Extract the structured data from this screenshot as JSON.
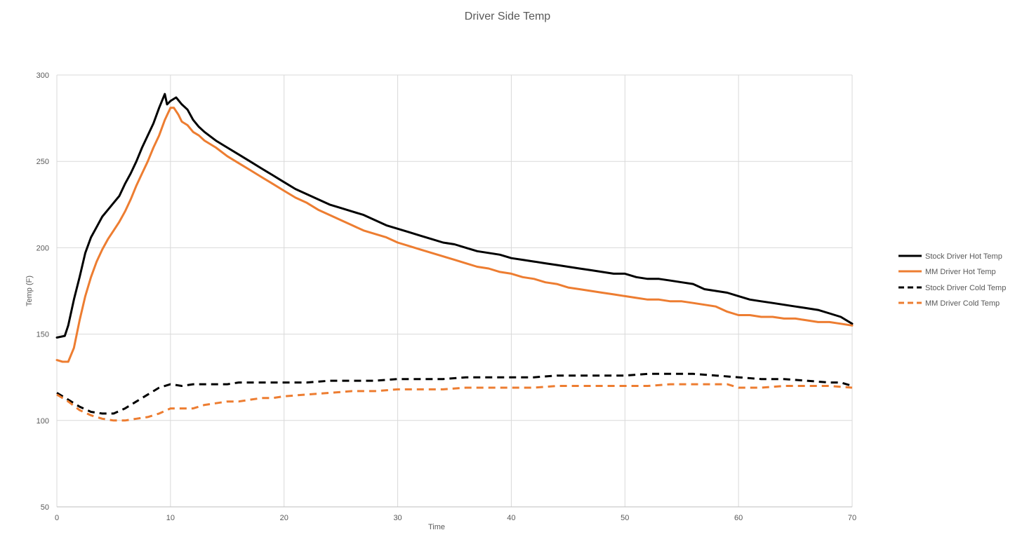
{
  "chart_data": {
    "type": "line",
    "title": "Driver Side Temp",
    "xlabel": "Time",
    "ylabel": "Temp  (F)",
    "xlim": [
      0,
      70
    ],
    "ylim": [
      50,
      300
    ],
    "x_ticks": [
      "0",
      "10",
      "20",
      "30",
      "40",
      "50",
      "60",
      "70"
    ],
    "y_ticks": [
      "50",
      "100",
      "150",
      "200",
      "250",
      "300"
    ],
    "grid": true,
    "legend_position": "right",
    "series": [
      {
        "name": "Stock Driver Hot Temp",
        "color": "#000000",
        "style": "solid",
        "points": [
          [
            0,
            148
          ],
          [
            0.7,
            149
          ],
          [
            1,
            155
          ],
          [
            1.5,
            170
          ],
          [
            2,
            183
          ],
          [
            2.5,
            197
          ],
          [
            3,
            206
          ],
          [
            3.5,
            212
          ],
          [
            4,
            218
          ],
          [
            4.5,
            222
          ],
          [
            5,
            226
          ],
          [
            5.5,
            230
          ],
          [
            6,
            237
          ],
          [
            6.5,
            243
          ],
          [
            7,
            250
          ],
          [
            7.5,
            258
          ],
          [
            8,
            265
          ],
          [
            8.5,
            272
          ],
          [
            9,
            281
          ],
          [
            9.5,
            289
          ],
          [
            9.7,
            283
          ],
          [
            10,
            285
          ],
          [
            10.5,
            287
          ],
          [
            11,
            283
          ],
          [
            11.5,
            280
          ],
          [
            12,
            274
          ],
          [
            12.5,
            270
          ],
          [
            13,
            267
          ],
          [
            14,
            262
          ],
          [
            15,
            258
          ],
          [
            16,
            254
          ],
          [
            17,
            250
          ],
          [
            18,
            246
          ],
          [
            19,
            242
          ],
          [
            20,
            238
          ],
          [
            21,
            234
          ],
          [
            22,
            231
          ],
          [
            23,
            228
          ],
          [
            24,
            225
          ],
          [
            25,
            223
          ],
          [
            26,
            221
          ],
          [
            27,
            219
          ],
          [
            28,
            216
          ],
          [
            29,
            213
          ],
          [
            30,
            211
          ],
          [
            31,
            209
          ],
          [
            32,
            207
          ],
          [
            33,
            205
          ],
          [
            34,
            203
          ],
          [
            35,
            202
          ],
          [
            36,
            200
          ],
          [
            37,
            198
          ],
          [
            38,
            197
          ],
          [
            39,
            196
          ],
          [
            40,
            194
          ],
          [
            41,
            193
          ],
          [
            42,
            192
          ],
          [
            43,
            191
          ],
          [
            44,
            190
          ],
          [
            45,
            189
          ],
          [
            46,
            188
          ],
          [
            47,
            187
          ],
          [
            48,
            186
          ],
          [
            49,
            185
          ],
          [
            50,
            185
          ],
          [
            51,
            183
          ],
          [
            52,
            182
          ],
          [
            53,
            182
          ],
          [
            54,
            181
          ],
          [
            55,
            180
          ],
          [
            56,
            179
          ],
          [
            57,
            176
          ],
          [
            58,
            175
          ],
          [
            59,
            174
          ],
          [
            60,
            172
          ],
          [
            61,
            170
          ],
          [
            62,
            169
          ],
          [
            63,
            168
          ],
          [
            64,
            167
          ],
          [
            65,
            166
          ],
          [
            66,
            165
          ],
          [
            67,
            164
          ],
          [
            68,
            162
          ],
          [
            69,
            160
          ],
          [
            70,
            156
          ]
        ]
      },
      {
        "name": "MM Driver Hot Temp",
        "color": "#ED7D31",
        "style": "solid",
        "points": [
          [
            0,
            135
          ],
          [
            0.5,
            134
          ],
          [
            1,
            134
          ],
          [
            1.5,
            142
          ],
          [
            2,
            158
          ],
          [
            2.5,
            172
          ],
          [
            3,
            183
          ],
          [
            3.5,
            192
          ],
          [
            4,
            199
          ],
          [
            4.5,
            205
          ],
          [
            5,
            210
          ],
          [
            5.5,
            215
          ],
          [
            6,
            221
          ],
          [
            6.5,
            228
          ],
          [
            7,
            236
          ],
          [
            7.5,
            243
          ],
          [
            8,
            250
          ],
          [
            8.5,
            258
          ],
          [
            9,
            265
          ],
          [
            9.5,
            274
          ],
          [
            10,
            281
          ],
          [
            10.3,
            281
          ],
          [
            10.7,
            277
          ],
          [
            11,
            273
          ],
          [
            11.5,
            271
          ],
          [
            12,
            267
          ],
          [
            12.5,
            265
          ],
          [
            13,
            262
          ],
          [
            14,
            258
          ],
          [
            15,
            253
          ],
          [
            16,
            249
          ],
          [
            17,
            245
          ],
          [
            18,
            241
          ],
          [
            19,
            237
          ],
          [
            20,
            233
          ],
          [
            21,
            229
          ],
          [
            22,
            226
          ],
          [
            23,
            222
          ],
          [
            24,
            219
          ],
          [
            25,
            216
          ],
          [
            26,
            213
          ],
          [
            27,
            210
          ],
          [
            28,
            208
          ],
          [
            29,
            206
          ],
          [
            30,
            203
          ],
          [
            31,
            201
          ],
          [
            32,
            199
          ],
          [
            33,
            197
          ],
          [
            34,
            195
          ],
          [
            35,
            193
          ],
          [
            36,
            191
          ],
          [
            37,
            189
          ],
          [
            38,
            188
          ],
          [
            39,
            186
          ],
          [
            40,
            185
          ],
          [
            41,
            183
          ],
          [
            42,
            182
          ],
          [
            43,
            180
          ],
          [
            44,
            179
          ],
          [
            45,
            177
          ],
          [
            46,
            176
          ],
          [
            47,
            175
          ],
          [
            48,
            174
          ],
          [
            49,
            173
          ],
          [
            50,
            172
          ],
          [
            51,
            171
          ],
          [
            52,
            170
          ],
          [
            53,
            170
          ],
          [
            54,
            169
          ],
          [
            55,
            169
          ],
          [
            56,
            168
          ],
          [
            57,
            167
          ],
          [
            58,
            166
          ],
          [
            59,
            163
          ],
          [
            60,
            161
          ],
          [
            61,
            161
          ],
          [
            62,
            160
          ],
          [
            63,
            160
          ],
          [
            64,
            159
          ],
          [
            65,
            159
          ],
          [
            66,
            158
          ],
          [
            67,
            157
          ],
          [
            68,
            157
          ],
          [
            69,
            156
          ],
          [
            70,
            155
          ]
        ]
      },
      {
        "name": "Stock Driver Cold Temp",
        "color": "#000000",
        "style": "dashed",
        "points": [
          [
            0,
            116
          ],
          [
            1,
            112
          ],
          [
            2,
            108
          ],
          [
            3,
            105
          ],
          [
            4,
            104
          ],
          [
            5,
            104
          ],
          [
            6,
            107
          ],
          [
            7,
            111
          ],
          [
            8,
            115
          ],
          [
            9,
            119
          ],
          [
            10,
            121
          ],
          [
            11,
            120
          ],
          [
            12,
            121
          ],
          [
            13,
            121
          ],
          [
            14,
            121
          ],
          [
            15,
            121
          ],
          [
            16,
            122
          ],
          [
            17,
            122
          ],
          [
            18,
            122
          ],
          [
            19,
            122
          ],
          [
            20,
            122
          ],
          [
            22,
            122
          ],
          [
            24,
            123
          ],
          [
            26,
            123
          ],
          [
            28,
            123
          ],
          [
            30,
            124
          ],
          [
            32,
            124
          ],
          [
            34,
            124
          ],
          [
            36,
            125
          ],
          [
            38,
            125
          ],
          [
            40,
            125
          ],
          [
            42,
            125
          ],
          [
            44,
            126
          ],
          [
            46,
            126
          ],
          [
            48,
            126
          ],
          [
            50,
            126
          ],
          [
            52,
            127
          ],
          [
            54,
            127
          ],
          [
            56,
            127
          ],
          [
            58,
            126
          ],
          [
            60,
            125
          ],
          [
            62,
            124
          ],
          [
            64,
            124
          ],
          [
            66,
            123
          ],
          [
            68,
            122
          ],
          [
            69,
            122
          ],
          [
            70,
            120
          ]
        ]
      },
      {
        "name": "MM Driver Cold Temp",
        "color": "#ED7D31",
        "style": "dashed",
        "points": [
          [
            0,
            115
          ],
          [
            1,
            111
          ],
          [
            2,
            106
          ],
          [
            3,
            103
          ],
          [
            4,
            101
          ],
          [
            5,
            100
          ],
          [
            6,
            100
          ],
          [
            7,
            101
          ],
          [
            8,
            102
          ],
          [
            9,
            104
          ],
          [
            10,
            107
          ],
          [
            11,
            107
          ],
          [
            12,
            107
          ],
          [
            13,
            109
          ],
          [
            14,
            110
          ],
          [
            15,
            111
          ],
          [
            16,
            111
          ],
          [
            17,
            112
          ],
          [
            18,
            113
          ],
          [
            19,
            113
          ],
          [
            20,
            114
          ],
          [
            22,
            115
          ],
          [
            24,
            116
          ],
          [
            26,
            117
          ],
          [
            28,
            117
          ],
          [
            30,
            118
          ],
          [
            32,
            118
          ],
          [
            34,
            118
          ],
          [
            36,
            119
          ],
          [
            38,
            119
          ],
          [
            40,
            119
          ],
          [
            42,
            119
          ],
          [
            44,
            120
          ],
          [
            46,
            120
          ],
          [
            48,
            120
          ],
          [
            50,
            120
          ],
          [
            52,
            120
          ],
          [
            54,
            121
          ],
          [
            56,
            121
          ],
          [
            58,
            121
          ],
          [
            59,
            121
          ],
          [
            60,
            119
          ],
          [
            62,
            119
          ],
          [
            64,
            120
          ],
          [
            66,
            120
          ],
          [
            68,
            120
          ],
          [
            70,
            119
          ]
        ]
      }
    ]
  }
}
